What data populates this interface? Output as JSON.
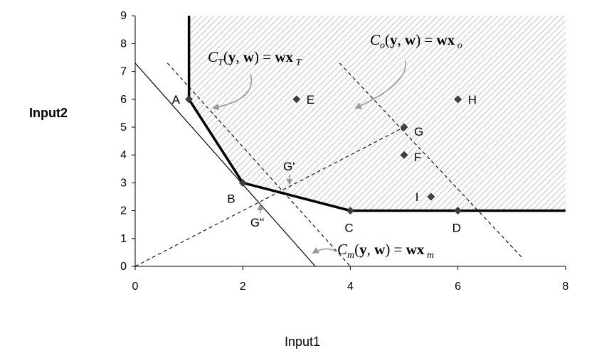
{
  "chart_data": {
    "type": "line",
    "xlabel": "Input1",
    "ylabel": "Input2",
    "xlim": [
      0,
      8
    ],
    "ylim": [
      0,
      9
    ],
    "x_ticks": [
      "0",
      "2",
      "4",
      "6",
      "8"
    ],
    "y_ticks": [
      "0",
      "1",
      "2",
      "3",
      "4",
      "5",
      "6",
      "7",
      "8",
      "9"
    ],
    "grid": false,
    "legend": "none",
    "shaded_region": {
      "pattern": "diagonal hatch",
      "color": "#c8c8c8",
      "vertices": [
        [
          1,
          9
        ],
        [
          1,
          6
        ],
        [
          2,
          3
        ],
        [
          4,
          2
        ],
        [
          8,
          2
        ],
        [
          8,
          9
        ]
      ]
    },
    "frontier": {
      "style": "solid-thick",
      "points": [
        [
          1,
          9
        ],
        [
          1,
          6
        ],
        [
          2,
          3
        ],
        [
          4,
          2
        ],
        [
          8,
          2
        ]
      ]
    },
    "cost_lines": [
      {
        "id": "C_T",
        "style": "dashed",
        "points": [
          [
            0.6,
            7.3
          ],
          [
            4,
            0
          ]
        ]
      },
      {
        "id": "C_o",
        "style": "dashed",
        "points": [
          [
            3.8,
            7.3
          ],
          [
            7.2,
            0.3
          ]
        ]
      },
      {
        "id": "C_m",
        "style": "solid-thin",
        "points": [
          [
            0,
            7.3
          ],
          [
            3.35,
            0
          ]
        ]
      }
    ],
    "ray": {
      "style": "dashed",
      "points": [
        [
          0,
          0
        ],
        [
          5,
          5
        ]
      ]
    },
    "points": [
      {
        "label": "A",
        "x": 1,
        "y": 6
      },
      {
        "label": "B",
        "x": 2,
        "y": 3
      },
      {
        "label": "C",
        "x": 4,
        "y": 2
      },
      {
        "label": "D",
        "x": 6,
        "y": 2
      },
      {
        "label": "E",
        "x": 3,
        "y": 6
      },
      {
        "label": "F",
        "x": 5,
        "y": 4
      },
      {
        "label": "G",
        "x": 5,
        "y": 5
      },
      {
        "label": "H",
        "x": 6,
        "y": 6
      },
      {
        "label": "I",
        "x": 5.5,
        "y": 2.5
      }
    ],
    "annotations": [
      {
        "label": "G'",
        "x": 2.83,
        "y": 2.83
      },
      {
        "label": "G\"",
        "x": 2.3,
        "y": 2.3
      }
    ],
    "equations": [
      {
        "id": "C_T",
        "C": "C",
        "sub": "T",
        "args": "(y, w) = ",
        "wx": "wx",
        "wx_sub": "T"
      },
      {
        "id": "C_o",
        "C": "C",
        "sub": "o",
        "args": "(y, w) = ",
        "wx": "wx",
        "wx_sub": "o"
      },
      {
        "id": "C_m",
        "C": "C",
        "sub": "m",
        "args": "(y, w) = ",
        "wx": "wx",
        "wx_sub": "m"
      }
    ],
    "colors": {
      "marker": "#404040",
      "frontier": "#000000",
      "arrow": "#999999",
      "hatch": "#c8c8c8"
    }
  }
}
